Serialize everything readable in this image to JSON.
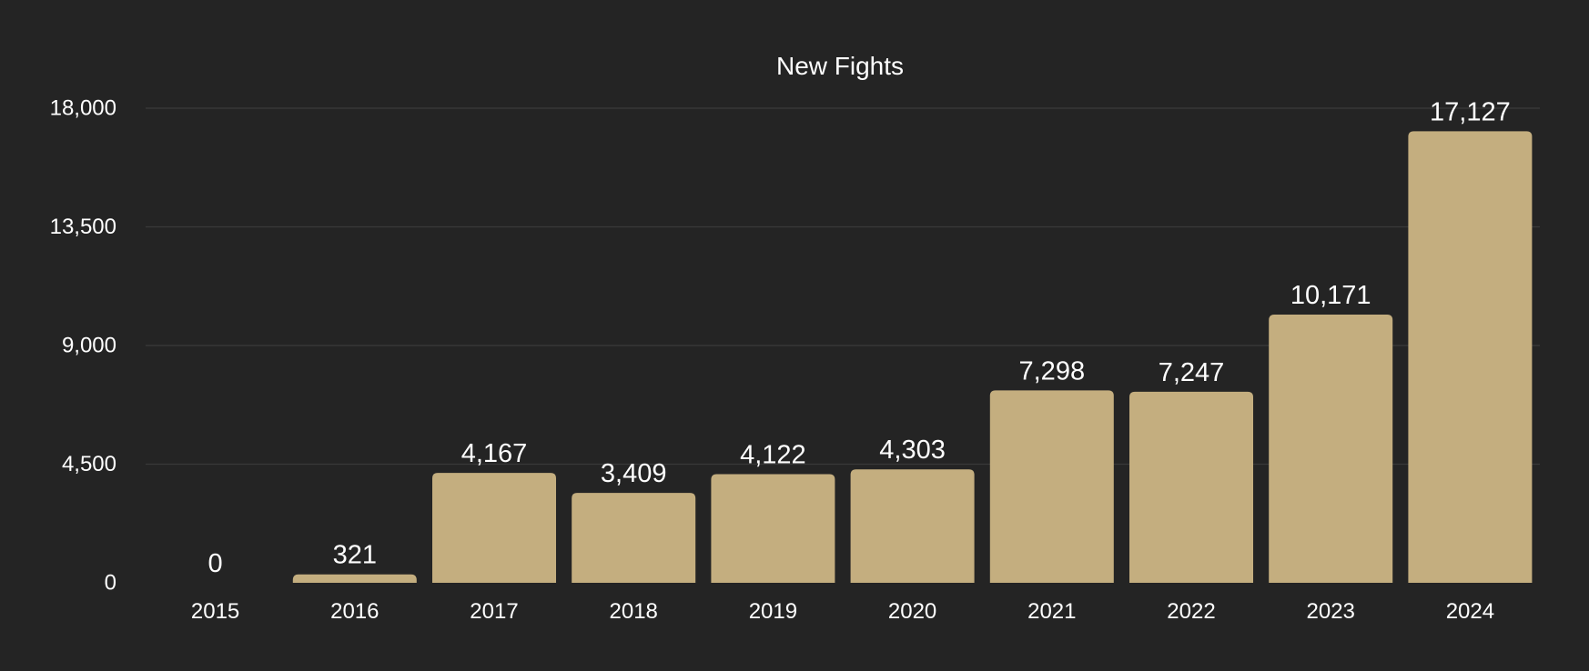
{
  "chart_data": {
    "type": "bar",
    "title": "New Fights",
    "xlabel": "",
    "ylabel": "",
    "categories": [
      "2015",
      "2016",
      "2017",
      "2018",
      "2019",
      "2020",
      "2021",
      "2022",
      "2023",
      "2024"
    ],
    "values": [
      0,
      321,
      4167,
      3409,
      4122,
      4303,
      7298,
      7247,
      10171,
      17127
    ],
    "value_labels": [
      "0",
      "321",
      "4,167",
      "3,409",
      "4,122",
      "4,303",
      "7,298",
      "7,247",
      "10,171",
      "17,127"
    ],
    "y_ticks": [
      0,
      4500,
      9000,
      13500,
      18000
    ],
    "y_tick_labels": [
      "0",
      "4,500",
      "9,000",
      "13,500",
      "18,000"
    ],
    "ylim": [
      0,
      18000
    ],
    "grid": true,
    "legend": "none",
    "colors": {
      "background": "#242424",
      "bar": "#c4ae7f",
      "gridline": "#3a3a3a",
      "text": "#ffffff"
    }
  }
}
